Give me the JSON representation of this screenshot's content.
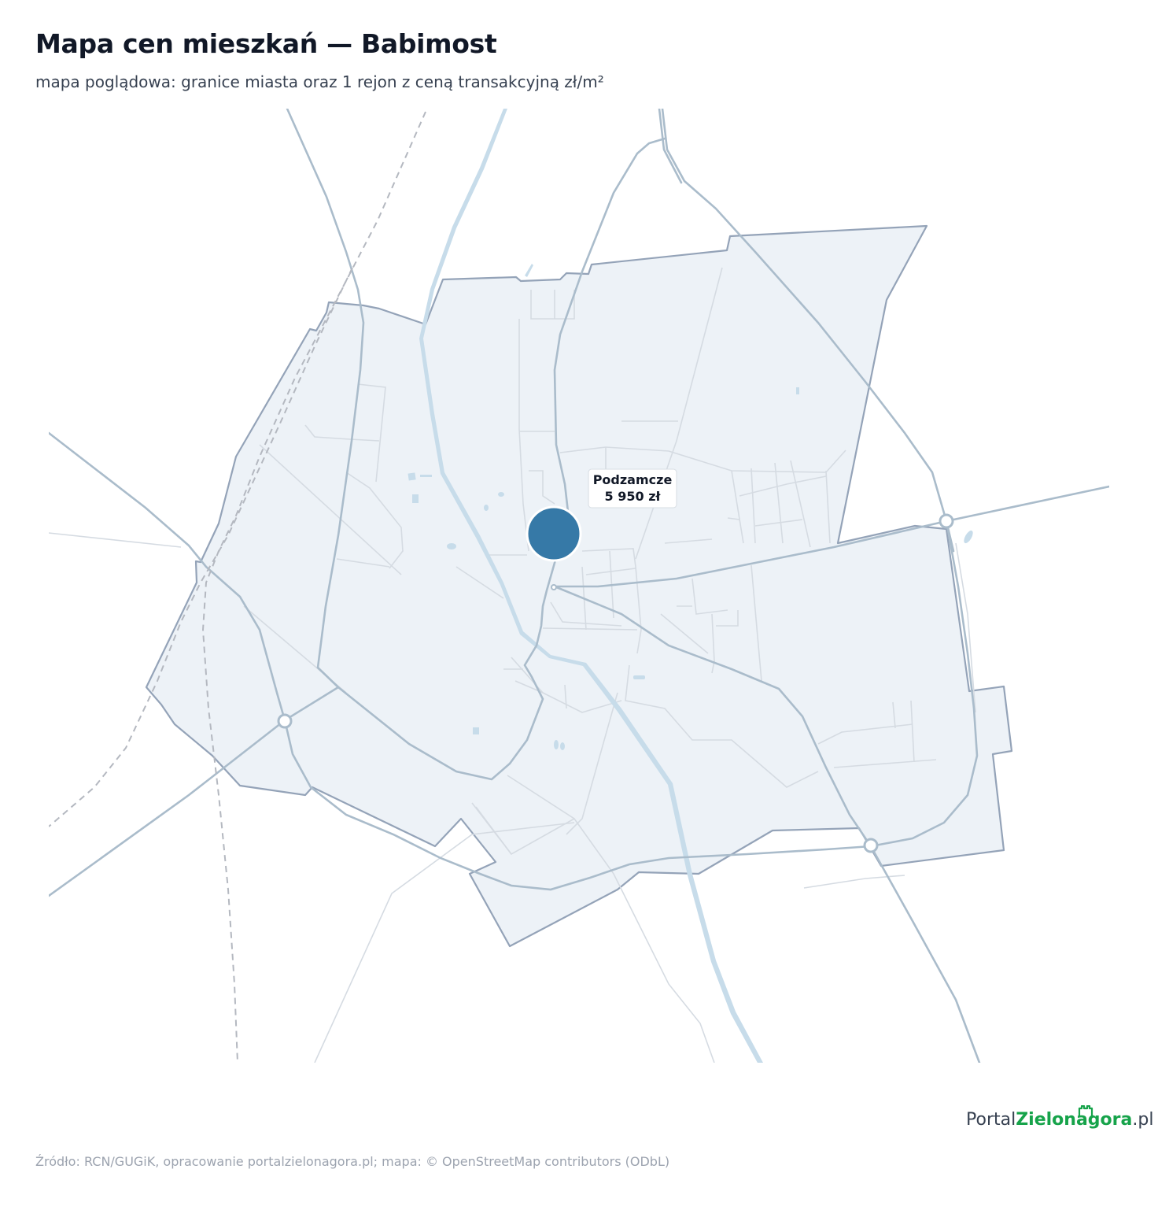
{
  "header": {
    "title": "Mapa cen mieszkań — Babimost",
    "subtitle": "mapa poglądowa: granice miasta oraz 1 rejon z ceną transakcyjną zł/m²"
  },
  "map": {
    "regions": [
      {
        "name": "Podzamcze",
        "price": "5 950 zł",
        "price_per_m2": 5950
      }
    ],
    "colors": {
      "city_fill": "#edf2f7",
      "city_border": "#94a3b8",
      "major_road": "#aabccb",
      "minor_road": "#d5dbe2",
      "water": "#c7dcea",
      "railway": "#b4b8c0",
      "marker": "#3679a7"
    }
  },
  "footer": {
    "source": "Źródło: RCN/GUGiK, opracowanie portalzielonagora.pl; mapa: © OpenStreetMap contributors (ODbL)"
  },
  "logo": {
    "part1": "Portal",
    "part2": "Zielonagora",
    "part3": ".pl",
    "icon": "castle-tower-icon"
  }
}
